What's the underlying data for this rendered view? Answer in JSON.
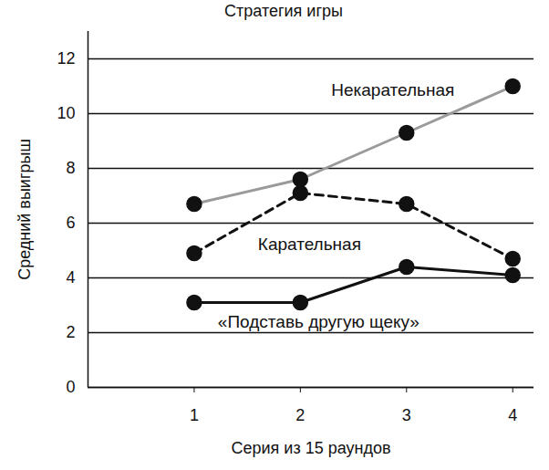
{
  "chart_data": {
    "type": "line",
    "title": "Стратегия игры",
    "x_label": "Серия из 15 раундов",
    "y_label": "Средний выигрыш",
    "x": [
      1,
      2,
      3,
      4
    ],
    "xlim": [
      0,
      4.2
    ],
    "xticks": [
      1,
      2,
      3,
      4
    ],
    "ylim": [
      0,
      13
    ],
    "yticks": [
      0,
      2,
      4,
      6,
      8,
      10,
      12
    ],
    "grid": true,
    "series": [
      {
        "name": "Некарательная",
        "color": "#9a9a9a",
        "line_style": "solid",
        "marker": "circle",
        "values": [
          6.7,
          7.6,
          9.3,
          11.0
        ]
      },
      {
        "name": "Карательная",
        "color": "#111111",
        "line_style": "dashed",
        "marker": "circle",
        "values": [
          4.9,
          7.1,
          6.7,
          4.7
        ]
      },
      {
        "name": "«Подставь другую щеку»",
        "color": "#111111",
        "line_style": "solid",
        "marker": "circle",
        "values": [
          3.1,
          3.1,
          4.4,
          4.1
        ]
      }
    ]
  }
}
